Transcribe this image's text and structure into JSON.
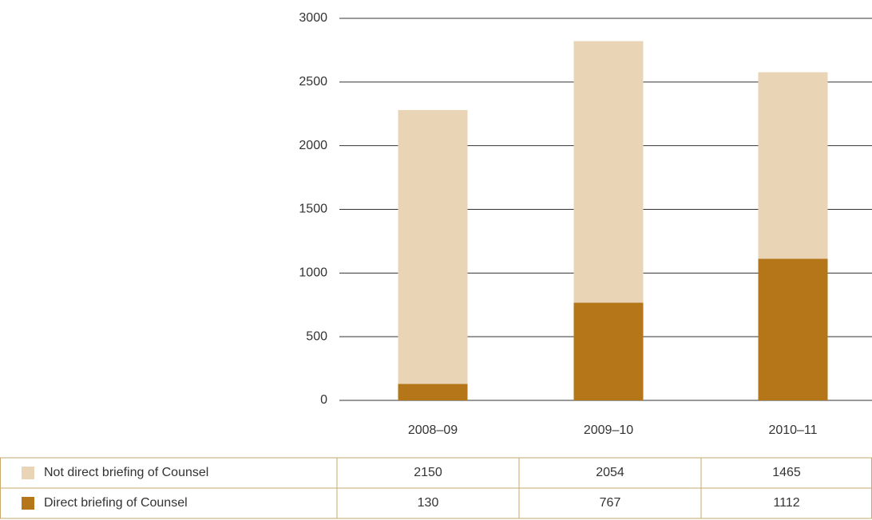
{
  "chart_data": {
    "type": "stacked_bar",
    "categories": [
      "2008–09",
      "2009–10",
      "2010–11"
    ],
    "series": [
      {
        "name": "Not direct briefing of Counsel",
        "color": "#e9d5b5",
        "values": [
          2150,
          2054,
          1465
        ]
      },
      {
        "name": "Direct briefing of Counsel",
        "color": "#b5761a",
        "values": [
          130,
          767,
          1112
        ]
      }
    ],
    "ylim": [
      0,
      3000
    ],
    "yticks": [
      0,
      500,
      1000,
      1500,
      2000,
      2500,
      3000
    ],
    "grid": true
  }
}
